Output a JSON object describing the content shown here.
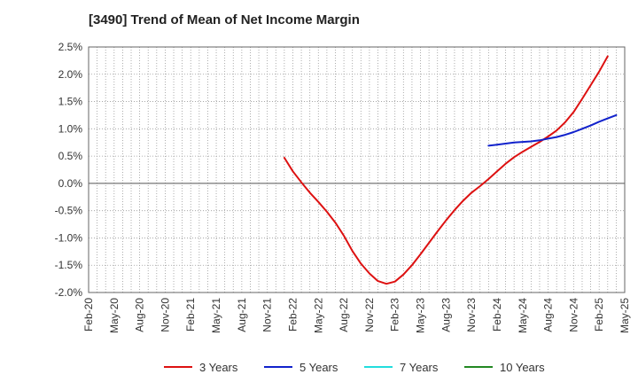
{
  "chart_data": {
    "type": "line",
    "title": "[3490]  Trend of Mean of Net Income Margin",
    "xlabel": "",
    "ylabel": "",
    "x_ticks": [
      "Feb-20",
      "May-20",
      "Aug-20",
      "Nov-20",
      "Feb-21",
      "May-21",
      "Aug-21",
      "Nov-21",
      "Feb-22",
      "May-22",
      "Aug-22",
      "Nov-22",
      "Feb-23",
      "May-23",
      "Aug-23",
      "Nov-23",
      "Feb-24",
      "May-24",
      "Aug-24",
      "Nov-24",
      "Feb-25",
      "May-25"
    ],
    "y_ticks": [
      "2.5%",
      "2.0%",
      "1.5%",
      "1.0%",
      "0.5%",
      "0.0%",
      "-0.5%",
      "-1.0%",
      "-1.5%",
      "-2.0%"
    ],
    "ylim": [
      -2.0,
      2.5
    ],
    "x_range": [
      "Feb-20",
      "May-25"
    ],
    "grid": true,
    "legend_position": "bottom",
    "series": [
      {
        "name": "3 Years",
        "color": "#dd1111",
        "points": [
          [
            "Jan-22",
            0.47
          ],
          [
            "Feb-22",
            0.22
          ],
          [
            "Mar-22",
            0.02
          ],
          [
            "Apr-22",
            -0.17
          ],
          [
            "May-22",
            -0.34
          ],
          [
            "Jun-22",
            -0.52
          ],
          [
            "Jul-22",
            -0.72
          ],
          [
            "Aug-22",
            -0.96
          ],
          [
            "Sep-22",
            -1.24
          ],
          [
            "Oct-22",
            -1.47
          ],
          [
            "Nov-22",
            -1.65
          ],
          [
            "Dec-22",
            -1.79
          ],
          [
            "Jan-23",
            -1.84
          ],
          [
            "Feb-23",
            -1.8
          ],
          [
            "Mar-23",
            -1.67
          ],
          [
            "Apr-23",
            -1.5
          ],
          [
            "May-23",
            -1.3
          ],
          [
            "Jun-23",
            -1.09
          ],
          [
            "Jul-23",
            -0.88
          ],
          [
            "Aug-23",
            -0.68
          ],
          [
            "Sep-23",
            -0.49
          ],
          [
            "Oct-23",
            -0.32
          ],
          [
            "Nov-23",
            -0.17
          ],
          [
            "Dec-23",
            -0.05
          ],
          [
            "Jan-24",
            0.08
          ],
          [
            "Feb-24",
            0.22
          ],
          [
            "Mar-24",
            0.36
          ],
          [
            "Apr-24",
            0.48
          ],
          [
            "May-24",
            0.58
          ],
          [
            "Jun-24",
            0.67
          ],
          [
            "Jul-24",
            0.76
          ],
          [
            "Aug-24",
            0.86
          ],
          [
            "Sep-24",
            0.97
          ],
          [
            "Oct-24",
            1.12
          ],
          [
            "Nov-24",
            1.31
          ],
          [
            "Dec-24",
            1.55
          ],
          [
            "Jan-25",
            1.8
          ],
          [
            "Feb-25",
            2.05
          ],
          [
            "Mar-25",
            2.33
          ]
        ]
      },
      {
        "name": "5 Years",
        "color": "#1122cc",
        "points": [
          [
            "Jan-24",
            0.69
          ],
          [
            "Feb-24",
            0.71
          ],
          [
            "Mar-24",
            0.73
          ],
          [
            "Apr-24",
            0.75
          ],
          [
            "May-24",
            0.76
          ],
          [
            "Jun-24",
            0.77
          ],
          [
            "Jul-24",
            0.79
          ],
          [
            "Aug-24",
            0.82
          ],
          [
            "Sep-24",
            0.85
          ],
          [
            "Oct-24",
            0.89
          ],
          [
            "Nov-24",
            0.94
          ],
          [
            "Dec-24",
            1.0
          ],
          [
            "Jan-25",
            1.06
          ],
          [
            "Feb-25",
            1.13
          ],
          [
            "Mar-25",
            1.19
          ],
          [
            "Apr-25",
            1.25
          ]
        ]
      },
      {
        "name": "7 Years",
        "color": "#22dddd",
        "points": []
      },
      {
        "name": "10 Years",
        "color": "#228822",
        "points": []
      }
    ]
  }
}
